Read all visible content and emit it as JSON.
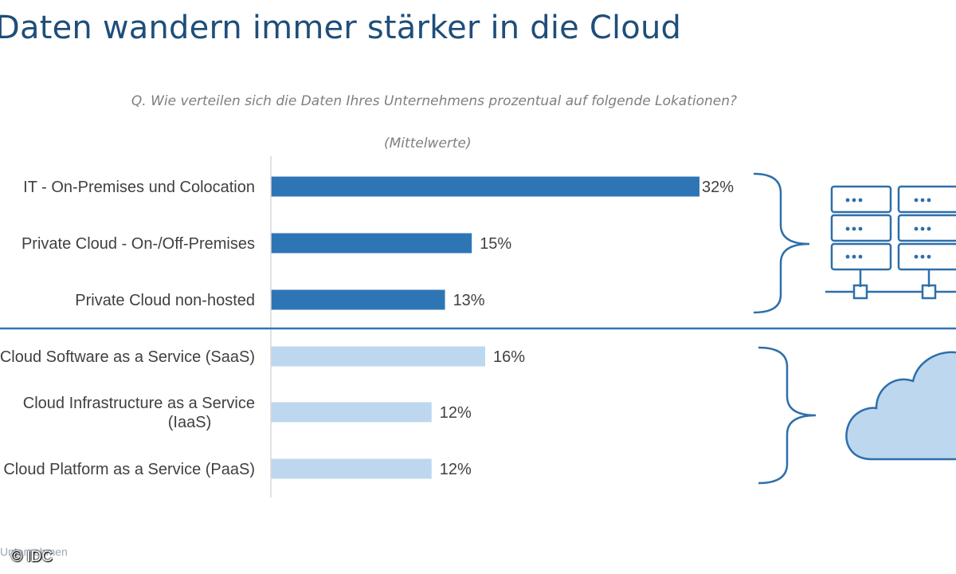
{
  "page": {
    "title": "Daten wandern immer stärker in die Cloud",
    "footer_fragment": "Unternehmen",
    "copyright": "© IDC"
  },
  "chart_data": {
    "type": "bar",
    "orientation": "horizontal",
    "title": "",
    "subtitle": "Q. Wie verteilen sich die Daten Ihres Unternehmens prozentual auf folgende Lokationen?",
    "note": "(Mittelwerte)",
    "categories": [
      "IT - On-Premises und Colocation",
      "Private Cloud - On-/Off-Premises",
      "Private Cloud non-hosted",
      "Cloud Software as a Service (SaaS)",
      "Cloud Infrastructure as a Service (IaaS)",
      "Cloud Platform as a Service (PaaS)"
    ],
    "values": [
      32,
      15,
      13,
      16,
      12,
      12
    ],
    "value_labels": [
      "32%",
      "15%",
      "13%",
      "16%",
      "12%",
      "12%"
    ],
    "groups": [
      {
        "categories": [
          0,
          1,
          2
        ],
        "color": "#2e75b6",
        "icon": "server-rack-icon"
      },
      {
        "categories": [
          3,
          4,
          5
        ],
        "color": "#bdd7ee",
        "icon": "cloud-icon"
      }
    ],
    "xlim": [
      0,
      32
    ],
    "grid": false,
    "legend": "none"
  },
  "colors": {
    "title": "#1f4e79",
    "accent": "#2e75b6",
    "light": "#bdd7ee",
    "icon_stroke": "#2e6faa",
    "icon_fill": "#bdd7ee"
  }
}
